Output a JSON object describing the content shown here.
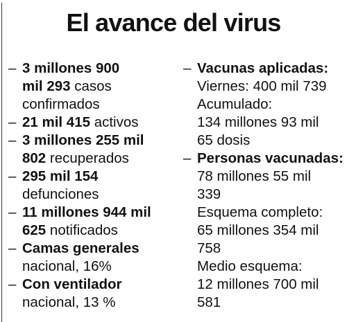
{
  "title": "El avance del virus",
  "dash": "–",
  "left": {
    "items": [
      {
        "lines": [
          {
            "bold": "3 millones 900",
            "text": ""
          },
          {
            "bold": "mil 293",
            "text": " casos"
          },
          {
            "bold": "",
            "text": "confirmados"
          }
        ]
      },
      {
        "lines": [
          {
            "bold": "21 mil 415",
            "text": " activos"
          }
        ]
      },
      {
        "lines": [
          {
            "bold": "3 millones 255 mil",
            "text": ""
          },
          {
            "bold": "802",
            "text": " recuperados"
          }
        ]
      },
      {
        "lines": [
          {
            "bold": "295 mil 154",
            "text": ""
          },
          {
            "bold": "",
            "text": "defunciones"
          }
        ]
      },
      {
        "lines": [
          {
            "bold": "11 millones 944 mil",
            "text": ""
          },
          {
            "bold": "625",
            "text": " notificados"
          }
        ]
      },
      {
        "lines": [
          {
            "bold": "Camas generales",
            "text": ""
          },
          {
            "bold": "",
            "text": "nacional, 16%"
          }
        ]
      },
      {
        "lines": [
          {
            "bold": "Con ventilador",
            "text": ""
          },
          {
            "bold": "",
            "text": "nacional, 13 %"
          }
        ]
      }
    ]
  },
  "right": {
    "items": [
      {
        "lines": [
          {
            "bold": "Vacunas aplicadas:",
            "text": ""
          },
          {
            "bold": "",
            "text": "Viernes: 400 mil 739"
          },
          {
            "bold": "",
            "text": "Acumulado:"
          },
          {
            "bold": "",
            "text": "134 millones 93 mil"
          },
          {
            "bold": "",
            "text": "65 dosis"
          }
        ]
      },
      {
        "lines": [
          {
            "bold": "Personas vacunadas:",
            "text": ""
          },
          {
            "bold": "",
            "text": "78 millones 55 mil"
          },
          {
            "bold": "",
            "text": "339"
          },
          {
            "bold": "",
            "text": "Esquema completo:"
          },
          {
            "bold": "",
            "text": "65 millones 354 mil"
          },
          {
            "bold": "",
            "text": "758"
          },
          {
            "bold": "",
            "text": "Medio esquema:"
          },
          {
            "bold": "",
            "text": "12 millones 700 mil"
          },
          {
            "bold": "",
            "text": "581"
          }
        ]
      }
    ]
  }
}
